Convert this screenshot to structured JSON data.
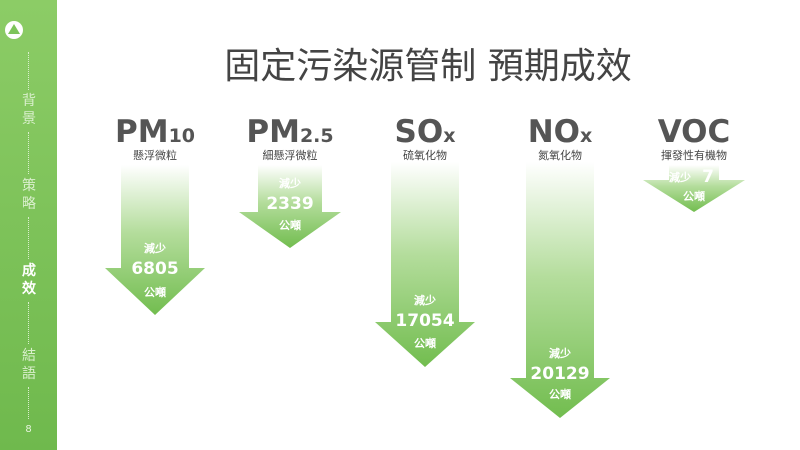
{
  "sidebar": {
    "nav": [
      "背景",
      "策略",
      "成效",
      "結語"
    ],
    "active": 2,
    "page": "8"
  },
  "title": "固定污染源管制 預期成效",
  "items": [
    {
      "name": "PM",
      "sub": "10",
      "desc": "懸浮微粒",
      "label": "減少",
      "value": 6805,
      "unit": "公噸"
    },
    {
      "name": "PM",
      "sub": "2.5",
      "desc": "細懸浮微粒",
      "label": "減少",
      "value": 2339,
      "unit": "公噸"
    },
    {
      "name": "SO",
      "sub": "x",
      "desc": "硫氧化物",
      "label": "減少",
      "value": 17054,
      "unit": "公噸"
    },
    {
      "name": "NO",
      "sub": "x",
      "desc": "氮氧化物",
      "label": "減少",
      "value": 20129,
      "unit": "公噸"
    },
    {
      "name": "VOC",
      "sub": "",
      "desc": "揮發性有機物",
      "label": "減少",
      "value": 7,
      "unit": "公噸"
    }
  ]
}
